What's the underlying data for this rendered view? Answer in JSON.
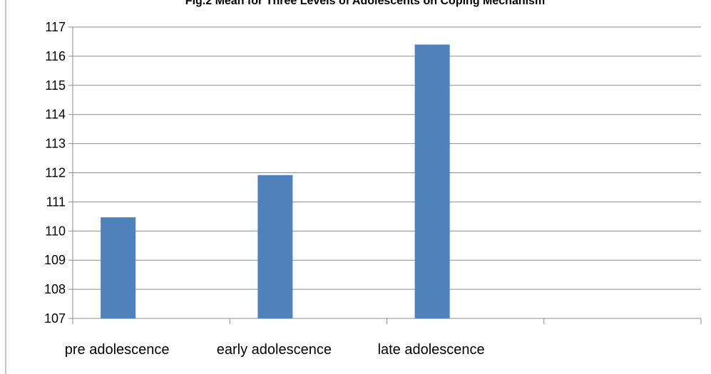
{
  "chart_data": {
    "type": "bar",
    "title": "Fig.2 Mean for Three Levels of Adolescents on Coping Mechanism",
    "xlabel": "",
    "ylabel": "",
    "categories": [
      "pre adolescence",
      "early adolescence",
      "late adolescence",
      ""
    ],
    "values": [
      110.47,
      111.92,
      116.4,
      null
    ],
    "ylim": [
      107,
      117
    ],
    "yticks": [
      107,
      108,
      109,
      110,
      111,
      112,
      113,
      114,
      115,
      116,
      117
    ],
    "grid": true,
    "legend": "none",
    "bar_color": "#4F81BD"
  }
}
